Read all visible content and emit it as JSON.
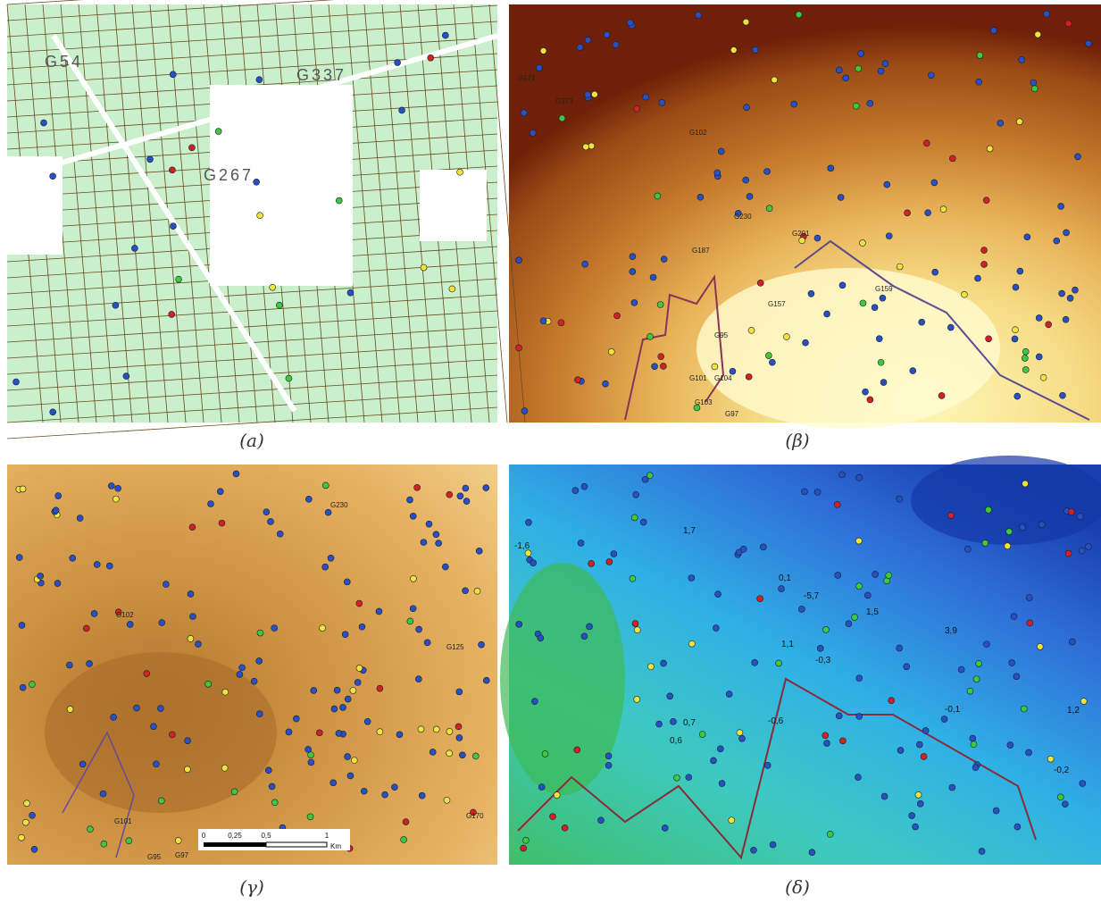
{
  "panels": [
    {
      "caption": "(a)",
      "labels": [
        "G54",
        "G337",
        "G267"
      ]
    },
    {
      "caption": "(β)",
      "labels": [
        "G171",
        "G373",
        "G102",
        "G230",
        "G201",
        "G187",
        "G95",
        "G101",
        "G104",
        "G103",
        "G97",
        "G157",
        "G159"
      ]
    },
    {
      "caption": "(γ)",
      "labels": [
        "G230",
        "G125",
        "G102",
        "G170",
        "G95",
        "G97",
        "G101"
      ],
      "scale_bar": {
        "ticks": [
          "0",
          "0,25",
          "0,5",
          "1"
        ],
        "unit": "Km"
      }
    },
    {
      "caption": "(δ)",
      "labels": [
        "-5,7",
        "1,5",
        "3,9",
        "1,7",
        "0,7",
        "0,6",
        "-0,6",
        "-0,2",
        "1,2",
        "0,1",
        "-0,3",
        "1,1",
        "-1,6",
        "-0,1"
      ]
    }
  ]
}
